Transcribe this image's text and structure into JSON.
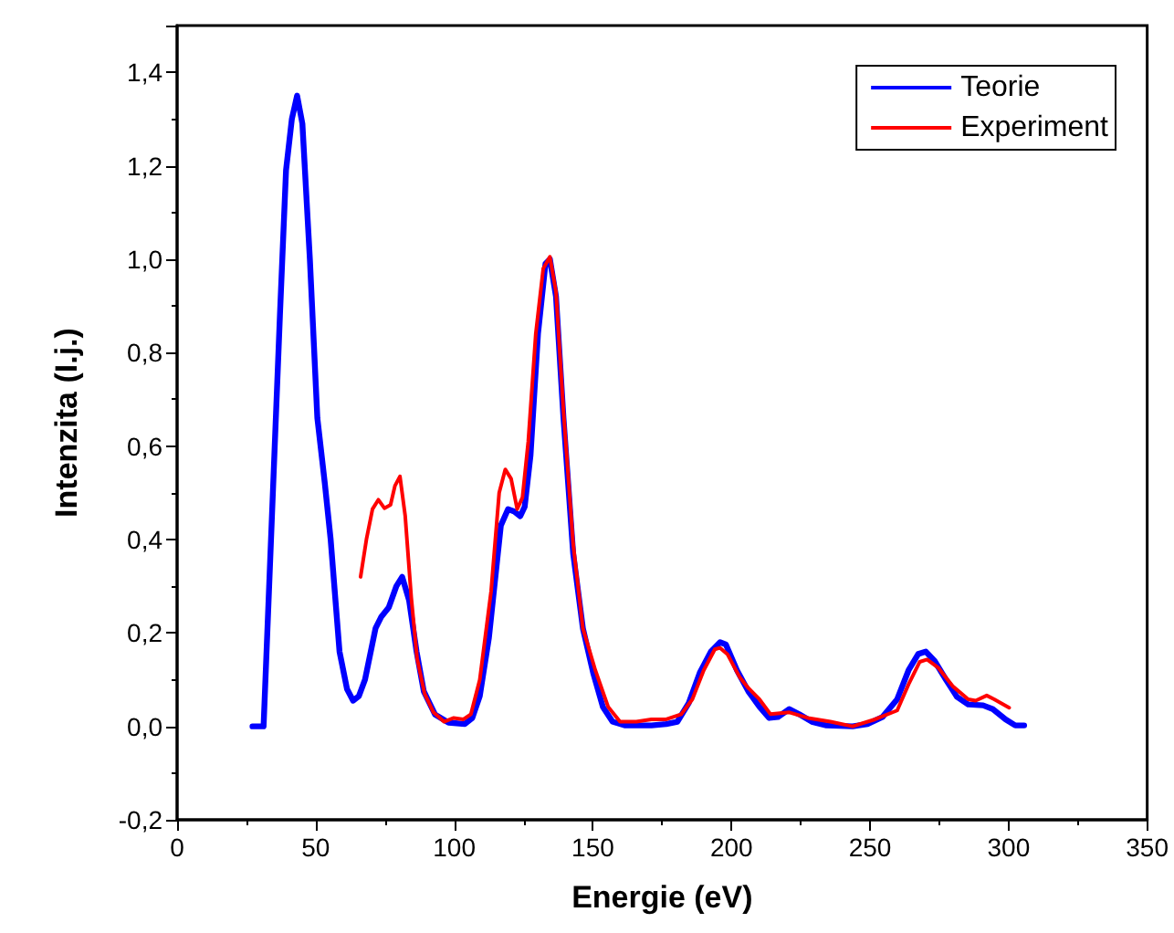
{
  "chart_data": {
    "type": "line",
    "xlabel": "Energie (eV)",
    "ylabel": "Intenzita (I.j.)",
    "xlim": [
      0,
      350
    ],
    "xticks": [
      0,
      50,
      100,
      150,
      200,
      250,
      300,
      350
    ],
    "ylim": [
      -0.2,
      1.5
    ],
    "yticks": [
      {
        "value": -0.2,
        "label": "-0,2"
      },
      {
        "value": 0,
        "label": "0,0"
      },
      {
        "value": 0.2,
        "label": "0,2"
      },
      {
        "value": 0.4,
        "label": "0,4"
      },
      {
        "value": 0.6,
        "label": "0,6"
      },
      {
        "value": 0.8,
        "label": "0,8"
      },
      {
        "value": 1.0,
        "label": "1,0"
      },
      {
        "value": 1.2,
        "label": "1,2"
      },
      {
        "value": 1.4,
        "label": "1,4"
      }
    ],
    "grid": false,
    "legend": "top right",
    "marker": "none",
    "line_style": "solid",
    "series": [
      {
        "name": "Teorie",
        "color": "#0000ff",
        "x": [
          27.2,
          31.2,
          37.1,
          39.3,
          41.4,
          43.3,
          45.2,
          47.9,
          50.6,
          53.3,
          55.4,
          58.6,
          61.3,
          63.5,
          65.6,
          67.8,
          71.6,
          73.7,
          76.4,
          79.1,
          81.2,
          83.7,
          86.4,
          89.0,
          93.1,
          97.9,
          103.8,
          106.5,
          109.2,
          112.5,
          116.8,
          119.4,
          121.6,
          123.8,
          125.4,
          127.5,
          130.2,
          132.9,
          134.5,
          136.7,
          139.4,
          142.9,
          146.4,
          150.1,
          153.6,
          157.1,
          161.7,
          171.1,
          176.5,
          180.5,
          184.6,
          188.6,
          192.6,
          195.9,
          198.0,
          202.0,
          206.1,
          210.1,
          213.6,
          216.8,
          220.9,
          224.4,
          229.0,
          234.3,
          243.7,
          249.1,
          254.5,
          259.8,
          263.9,
          267.4,
          270.1,
          273.3,
          277.4,
          281.4,
          285.4,
          290.8,
          294.3,
          298.9,
          302.4,
          305.6
        ],
        "values": [
          0,
          0,
          0.88,
          1.19,
          1.3,
          1.35,
          1.29,
          1.0,
          0.66,
          0.52,
          0.4,
          0.16,
          0.08,
          0.055,
          0.065,
          0.1,
          0.21,
          0.235,
          0.255,
          0.3,
          0.32,
          0.27,
          0.16,
          0.075,
          0.025,
          0.008,
          0.005,
          0.018,
          0.065,
          0.19,
          0.43,
          0.465,
          0.46,
          0.45,
          0.47,
          0.58,
          0.84,
          0.99,
          1.0,
          0.92,
          0.66,
          0.37,
          0.21,
          0.115,
          0.042,
          0.01,
          0.002,
          0.002,
          0.005,
          0.01,
          0.05,
          0.115,
          0.16,
          0.18,
          0.175,
          0.12,
          0.075,
          0.042,
          0.018,
          0.02,
          0.037,
          0.026,
          0.01,
          0.002,
          0,
          0.005,
          0.02,
          0.058,
          0.12,
          0.155,
          0.16,
          0.14,
          0.1,
          0.063,
          0.047,
          0.045,
          0.037,
          0.015,
          0.002,
          0.002
        ]
      },
      {
        "name": "Experiment",
        "color": "#ff0000",
        "x": [
          66.2,
          68.3,
          70.5,
          72.6,
          74.8,
          77.0,
          78.6,
          80.4,
          82.3,
          84.5,
          86.6,
          89.3,
          92.5,
          96.3,
          99.8,
          103.3,
          106.0,
          109.2,
          113.3,
          116.2,
          118.4,
          120.5,
          122.7,
          124.6,
          126.7,
          129.4,
          132.1,
          134.5,
          136.7,
          139.4,
          142.9,
          146.4,
          150.9,
          155.5,
          159.8,
          165.7,
          171.1,
          176.5,
          181.9,
          185.9,
          190.0,
          194.0,
          195.9,
          198.6,
          202.9,
          206.1,
          210.1,
          214.1,
          220.9,
          227.6,
          235.7,
          243.7,
          251.8,
          259.8,
          263.9,
          267.9,
          270.6,
          274.7,
          280.0,
          285.4,
          288.1,
          292.1,
          294.8,
          300.2
        ],
        "values": [
          0.32,
          0.4,
          0.465,
          0.485,
          0.467,
          0.474,
          0.515,
          0.535,
          0.45,
          0.275,
          0.145,
          0.07,
          0.03,
          0.01,
          0.018,
          0.015,
          0.026,
          0.1,
          0.29,
          0.5,
          0.55,
          0.53,
          0.465,
          0.49,
          0.61,
          0.84,
          0.98,
          1.005,
          0.93,
          0.675,
          0.39,
          0.21,
          0.12,
          0.042,
          0.01,
          0.01,
          0.015,
          0.015,
          0.026,
          0.058,
          0.12,
          0.165,
          0.168,
          0.154,
          0.106,
          0.082,
          0.058,
          0.026,
          0.03,
          0.018,
          0.01,
          0,
          0.015,
          0.034,
          0.09,
          0.138,
          0.143,
          0.125,
          0.085,
          0.058,
          0.055,
          0.066,
          0.058,
          0.04
        ]
      }
    ]
  }
}
